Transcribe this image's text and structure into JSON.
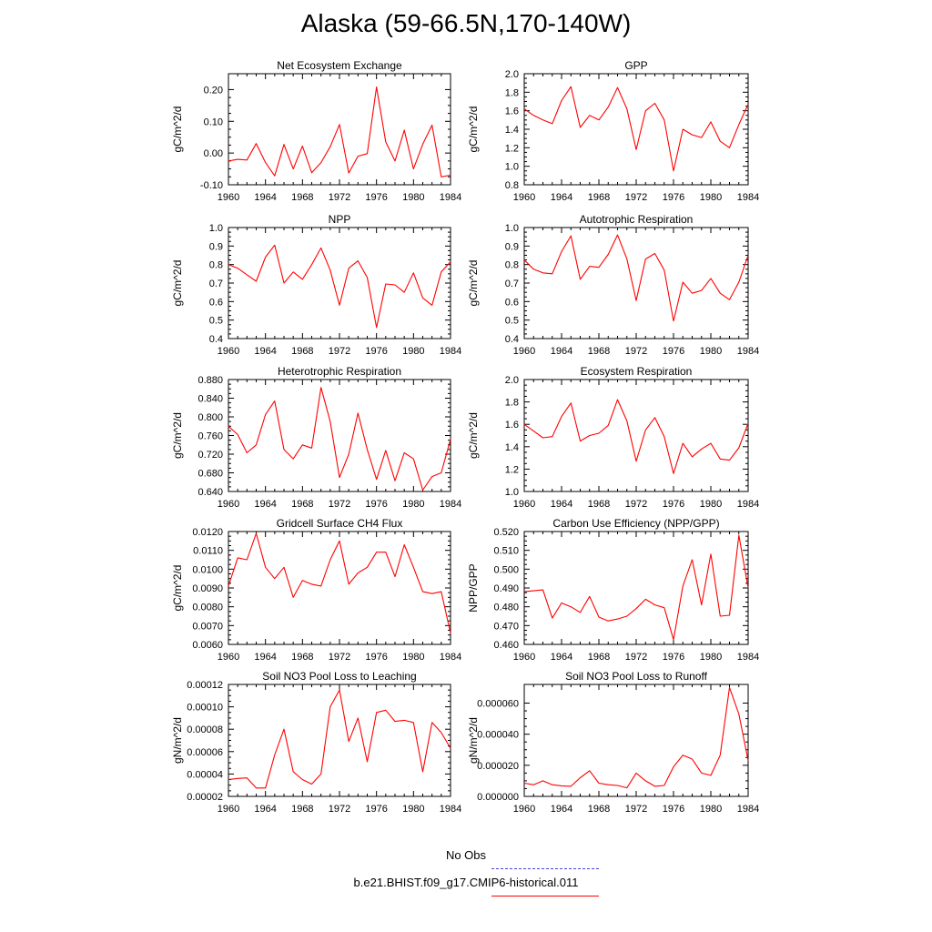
{
  "title": "Alaska (59-66.5N,170-140W)",
  "colors": {
    "model": "#ff0000",
    "obs": "#4444dd",
    "axis": "#000000"
  },
  "legend": {
    "obs_label": "No Obs",
    "model_label": "b.e21.BHIST.f09_g17.CMIP6-historical.011"
  },
  "chart_data": [
    {
      "type": "line",
      "title": "Net Ecosystem Exchange",
      "ylabel": "gC/m^2/d",
      "xlim": [
        1960,
        1984
      ],
      "ylim": [
        -0.1,
        0.25
      ],
      "xticks": [
        "1960",
        "1964",
        "1968",
        "1972",
        "1976",
        "1980",
        "1984"
      ],
      "yticks": [
        "-0.10",
        "0.00",
        "0.10",
        "0.20"
      ],
      "ytick_values": [
        -0.1,
        0.0,
        0.1,
        0.2
      ],
      "x": [
        1960,
        1961,
        1962,
        1963,
        1964,
        1965,
        1966,
        1967,
        1968,
        1969,
        1970,
        1971,
        1972,
        1973,
        1974,
        1975,
        1976,
        1977,
        1978,
        1979,
        1980,
        1981,
        1982,
        1983,
        1984
      ],
      "values": [
        -0.025,
        -0.02,
        -0.022,
        0.03,
        -0.03,
        -0.072,
        0.027,
        -0.05,
        0.022,
        -0.062,
        -0.03,
        0.02,
        0.09,
        -0.063,
        -0.01,
        -0.002,
        0.208,
        0.035,
        -0.025,
        0.072,
        -0.05,
        0.028,
        0.088,
        -0.075,
        -0.07
      ]
    },
    {
      "type": "line",
      "title": "GPP",
      "ylabel": "gC/m^2/d",
      "xlim": [
        1960,
        1984
      ],
      "ylim": [
        0.8,
        2.0
      ],
      "xticks": [
        "1960",
        "1964",
        "1968",
        "1972",
        "1976",
        "1980",
        "1984"
      ],
      "yticks": [
        "0.8",
        "1.0",
        "1.2",
        "1.4",
        "1.6",
        "1.8",
        "2.0"
      ],
      "ytick_values": [
        0.8,
        1.0,
        1.2,
        1.4,
        1.6,
        1.8,
        2.0
      ],
      "x": [
        1960,
        1961,
        1962,
        1963,
        1964,
        1965,
        1966,
        1967,
        1968,
        1969,
        1970,
        1971,
        1972,
        1973,
        1974,
        1975,
        1976,
        1977,
        1978,
        1979,
        1980,
        1981,
        1982,
        1983,
        1984
      ],
      "values": [
        1.62,
        1.55,
        1.5,
        1.46,
        1.71,
        1.86,
        1.42,
        1.55,
        1.5,
        1.64,
        1.85,
        1.62,
        1.18,
        1.6,
        1.68,
        1.5,
        0.95,
        1.4,
        1.34,
        1.31,
        1.48,
        1.27,
        1.2,
        1.45,
        1.67
      ]
    },
    {
      "type": "line",
      "title": "NPP",
      "ylabel": "gC/m^2/d",
      "xlim": [
        1960,
        1984
      ],
      "ylim": [
        0.4,
        1.0
      ],
      "xticks": [
        "1960",
        "1964",
        "1968",
        "1972",
        "1976",
        "1980",
        "1984"
      ],
      "yticks": [
        "0.4",
        "0.5",
        "0.6",
        "0.7",
        "0.8",
        "0.9",
        "1.0"
      ],
      "ytick_values": [
        0.4,
        0.5,
        0.6,
        0.7,
        0.8,
        0.9,
        1.0
      ],
      "x": [
        1960,
        1961,
        1962,
        1963,
        1964,
        1965,
        1966,
        1967,
        1968,
        1969,
        1970,
        1971,
        1972,
        1973,
        1974,
        1975,
        1976,
        1977,
        1978,
        1979,
        1980,
        1981,
        1982,
        1983,
        1984
      ],
      "values": [
        0.8,
        0.78,
        0.745,
        0.71,
        0.84,
        0.905,
        0.7,
        0.76,
        0.72,
        0.8,
        0.89,
        0.77,
        0.58,
        0.78,
        0.82,
        0.73,
        0.46,
        0.695,
        0.69,
        0.65,
        0.755,
        0.62,
        0.58,
        0.76,
        0.815
      ]
    },
    {
      "type": "line",
      "title": "Autotrophic Respiration",
      "ylabel": "gC/m^2/d",
      "xlim": [
        1960,
        1984
      ],
      "ylim": [
        0.4,
        1.0
      ],
      "xticks": [
        "1960",
        "1964",
        "1968",
        "1972",
        "1976",
        "1980",
        "1984"
      ],
      "yticks": [
        "0.4",
        "0.5",
        "0.6",
        "0.7",
        "0.8",
        "0.9",
        "1.0"
      ],
      "ytick_values": [
        0.4,
        0.5,
        0.6,
        0.7,
        0.8,
        0.9,
        1.0
      ],
      "x": [
        1960,
        1961,
        1962,
        1963,
        1964,
        1965,
        1966,
        1967,
        1968,
        1969,
        1970,
        1971,
        1972,
        1973,
        1974,
        1975,
        1976,
        1977,
        1978,
        1979,
        1980,
        1981,
        1982,
        1983,
        1984
      ],
      "values": [
        0.825,
        0.775,
        0.755,
        0.75,
        0.87,
        0.955,
        0.72,
        0.79,
        0.785,
        0.855,
        0.96,
        0.83,
        0.605,
        0.83,
        0.86,
        0.77,
        0.495,
        0.705,
        0.645,
        0.66,
        0.725,
        0.645,
        0.61,
        0.705,
        0.85
      ]
    },
    {
      "type": "line",
      "title": "Heterotrophic Respiration",
      "ylabel": "gC/m^2/d",
      "xlim": [
        1960,
        1984
      ],
      "ylim": [
        0.64,
        0.88
      ],
      "xticks": [
        "1960",
        "1964",
        "1968",
        "1972",
        "1976",
        "1980",
        "1984"
      ],
      "yticks": [
        "0.640",
        "0.680",
        "0.720",
        "0.760",
        "0.800",
        "0.840",
        "0.880"
      ],
      "ytick_values": [
        0.64,
        0.68,
        0.72,
        0.76,
        0.8,
        0.84,
        0.88
      ],
      "x": [
        1960,
        1961,
        1962,
        1963,
        1964,
        1965,
        1966,
        1967,
        1968,
        1969,
        1970,
        1971,
        1972,
        1973,
        1974,
        1975,
        1976,
        1977,
        1978,
        1979,
        1980,
        1981,
        1982,
        1983,
        1984
      ],
      "values": [
        0.78,
        0.762,
        0.723,
        0.74,
        0.805,
        0.834,
        0.73,
        0.71,
        0.74,
        0.733,
        0.863,
        0.79,
        0.67,
        0.72,
        0.808,
        0.73,
        0.666,
        0.728,
        0.663,
        0.723,
        0.71,
        0.643,
        0.672,
        0.68,
        0.752
      ]
    },
    {
      "type": "line",
      "title": "Ecosystem Respiration",
      "ylabel": "gC/m^2/d",
      "xlim": [
        1960,
        1984
      ],
      "ylim": [
        1.0,
        2.0
      ],
      "xticks": [
        "1960",
        "1964",
        "1968",
        "1972",
        "1976",
        "1980",
        "1984"
      ],
      "yticks": [
        "1.0",
        "1.2",
        "1.4",
        "1.6",
        "1.8",
        "2.0"
      ],
      "ytick_values": [
        1.0,
        1.2,
        1.4,
        1.6,
        1.8,
        2.0
      ],
      "x": [
        1960,
        1961,
        1962,
        1963,
        1964,
        1965,
        1966,
        1967,
        1968,
        1969,
        1970,
        1971,
        1972,
        1973,
        1974,
        1975,
        1976,
        1977,
        1978,
        1979,
        1980,
        1981,
        1982,
        1983,
        1984
      ],
      "values": [
        1.6,
        1.54,
        1.48,
        1.49,
        1.67,
        1.79,
        1.45,
        1.5,
        1.52,
        1.59,
        1.82,
        1.63,
        1.27,
        1.55,
        1.66,
        1.49,
        1.16,
        1.43,
        1.31,
        1.38,
        1.43,
        1.29,
        1.28,
        1.39,
        1.61
      ]
    },
    {
      "type": "line",
      "title": "Gridcell Surface CH4 Flux",
      "ylabel": "gC/m^2/d",
      "xlim": [
        1960,
        1984
      ],
      "ylim": [
        0.006,
        0.012
      ],
      "xticks": [
        "1960",
        "1964",
        "1968",
        "1972",
        "1976",
        "1980",
        "1984"
      ],
      "yticks": [
        "0.0060",
        "0.0070",
        "0.0080",
        "0.0090",
        "0.0100",
        "0.0110",
        "0.0120"
      ],
      "ytick_values": [
        0.006,
        0.007,
        0.008,
        0.009,
        0.01,
        0.011,
        0.012
      ],
      "x": [
        1960,
        1961,
        1962,
        1963,
        1964,
        1965,
        1966,
        1967,
        1968,
        1969,
        1970,
        1971,
        1972,
        1973,
        1974,
        1975,
        1976,
        1977,
        1978,
        1979,
        1980,
        1981,
        1982,
        1983,
        1984
      ],
      "values": [
        0.0091,
        0.0106,
        0.0105,
        0.0119,
        0.0101,
        0.0095,
        0.0101,
        0.0085,
        0.0094,
        0.0092,
        0.0091,
        0.0105,
        0.0115,
        0.0092,
        0.0098,
        0.0101,
        0.0109,
        0.0109,
        0.0096,
        0.0113,
        0.0101,
        0.0088,
        0.0087,
        0.0088,
        0.0066
      ]
    },
    {
      "type": "line",
      "title": "Carbon Use Efficiency (NPP/GPP)",
      "ylabel": "NPP/GPP",
      "xlim": [
        1960,
        1984
      ],
      "ylim": [
        0.46,
        0.52
      ],
      "xticks": [
        "1960",
        "1964",
        "1968",
        "1972",
        "1976",
        "1980",
        "1984"
      ],
      "yticks": [
        "0.460",
        "0.470",
        "0.480",
        "0.490",
        "0.500",
        "0.510",
        "0.520"
      ],
      "ytick_values": [
        0.46,
        0.47,
        0.48,
        0.49,
        0.5,
        0.51,
        0.52
      ],
      "x": [
        1960,
        1961,
        1962,
        1963,
        1964,
        1965,
        1966,
        1967,
        1968,
        1969,
        1970,
        1971,
        1972,
        1973,
        1974,
        1975,
        1976,
        1977,
        1978,
        1979,
        1980,
        1981,
        1982,
        1983,
        1984
      ],
      "values": [
        0.488,
        0.4885,
        0.489,
        0.474,
        0.482,
        0.48,
        0.477,
        0.4855,
        0.4745,
        0.4725,
        0.4735,
        0.475,
        0.479,
        0.484,
        0.481,
        0.4795,
        0.4625,
        0.491,
        0.505,
        0.481,
        0.508,
        0.475,
        0.4755,
        0.518,
        0.49
      ]
    },
    {
      "type": "line",
      "title": "Soil NO3 Pool Loss to Leaching",
      "ylabel": "gN/m^2/d",
      "xlim": [
        1960,
        1984
      ],
      "ylim": [
        2e-05,
        0.00012
      ],
      "xticks": [
        "1960",
        "1964",
        "1968",
        "1972",
        "1976",
        "1980",
        "1984"
      ],
      "yticks": [
        "0.00002",
        "0.00004",
        "0.00006",
        "0.00008",
        "0.00010",
        "0.00012"
      ],
      "ytick_values": [
        2e-05,
        4e-05,
        6e-05,
        8e-05,
        0.0001,
        0.00012
      ],
      "x": [
        1960,
        1961,
        1962,
        1963,
        1964,
        1965,
        1966,
        1967,
        1968,
        1969,
        1970,
        1971,
        1972,
        1973,
        1974,
        1975,
        1976,
        1977,
        1978,
        1979,
        1980,
        1981,
        1982,
        1983,
        1984
      ],
      "values": [
        3.5e-05,
        3.6e-05,
        3.65e-05,
        2.75e-05,
        2.75e-05,
        5.7e-05,
        8e-05,
        4.2e-05,
        3.5e-05,
        3.1e-05,
        4e-05,
        0.0001,
        0.000115,
        6.9e-05,
        9e-05,
        5.1e-05,
        9.5e-05,
        9.7e-05,
        8.7e-05,
        8.8e-05,
        8.6e-05,
        4.2e-05,
        8.6e-05,
        7.7e-05,
        6.3e-05
      ]
    },
    {
      "type": "line",
      "title": "Soil NO3 Pool Loss to Runoff",
      "ylabel": "gN/m^2/d",
      "xlim": [
        1960,
        1984
      ],
      "ylim": [
        0.0,
        7.2e-05
      ],
      "xticks": [
        "1960",
        "1964",
        "1968",
        "1972",
        "1976",
        "1980",
        "1984"
      ],
      "yticks": [
        "0.000000",
        "0.000020",
        "0.000040",
        "0.000060"
      ],
      "ytick_values": [
        0.0,
        2e-05,
        4e-05,
        6e-05
      ],
      "x": [
        1960,
        1961,
        1962,
        1963,
        1964,
        1965,
        1966,
        1967,
        1968,
        1969,
        1970,
        1971,
        1972,
        1973,
        1974,
        1975,
        1976,
        1977,
        1978,
        1979,
        1980,
        1981,
        1982,
        1983,
        1984
      ],
      "values": [
        8.5e-06,
        7.5e-06,
        1e-05,
        7.5e-06,
        6.8e-06,
        6.5e-06,
        1.2e-05,
        1.65e-05,
        8.5e-06,
        7.5e-06,
        7e-06,
        5.5e-06,
        1.5e-05,
        1e-05,
        6.5e-06,
        7e-06,
        1.9e-05,
        2.65e-05,
        2.4e-05,
        1.5e-05,
        1.35e-05,
        2.65e-05,
        7e-05,
        5.3e-05,
        2.3e-05
      ]
    }
  ]
}
